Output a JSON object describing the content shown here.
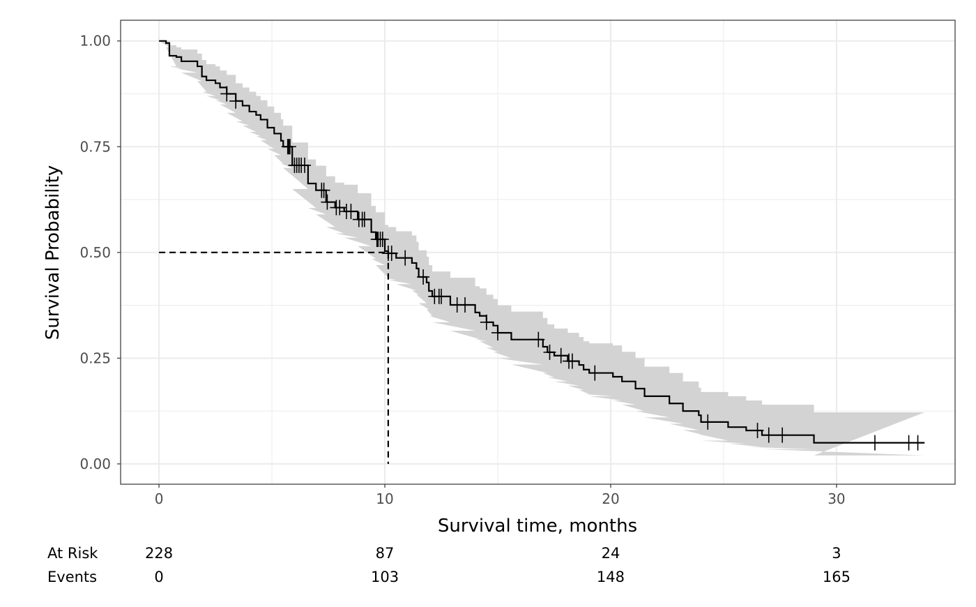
{
  "chart_data": {
    "type": "line",
    "subtype": "kaplan-meier step",
    "xlabel": "Survival time, months",
    "ylabel": "Survival Probability",
    "xlim": [
      -1.7,
      35.25
    ],
    "ylim": [
      -0.048,
      1.049
    ],
    "x_ticks": [
      0,
      10,
      20,
      30
    ],
    "x_tick_labels": [
      "0",
      "10",
      "20",
      "30"
    ],
    "y_ticks": [
      0,
      0.25,
      0.5,
      0.75,
      1.0
    ],
    "y_tick_labels": [
      "0.00",
      "0.25",
      "0.50",
      "0.75",
      "1.00"
    ],
    "grid": true,
    "colors": {
      "curve": "#000000",
      "band": "#d3d3d3",
      "grid": "#ebebeb",
      "border": "#333333"
    },
    "end_time": 33.9,
    "steps_columns": [
      "time",
      "survival",
      "lower",
      "upper"
    ],
    "steps": [
      [
        0,
        1,
        1,
        1
      ],
      [
        0.31,
        0.995,
        0.985,
        1
      ],
      [
        0.46,
        0.965,
        0.94,
        0.99
      ],
      [
        0.77,
        0.962,
        0.935,
        0.985
      ],
      [
        0.99,
        0.952,
        0.925,
        0.98
      ],
      [
        1.7,
        0.94,
        0.905,
        0.97
      ],
      [
        1.9,
        0.916,
        0.88,
        0.955
      ],
      [
        2.1,
        0.907,
        0.87,
        0.945
      ],
      [
        2.5,
        0.9,
        0.86,
        0.94
      ],
      [
        2.7,
        0.89,
        0.85,
        0.93
      ],
      [
        3.0,
        0.875,
        0.83,
        0.92
      ],
      [
        3.4,
        0.858,
        0.81,
        0.9
      ],
      [
        3.7,
        0.847,
        0.8,
        0.89
      ],
      [
        4.0,
        0.833,
        0.785,
        0.88
      ],
      [
        4.3,
        0.825,
        0.775,
        0.87
      ],
      [
        4.5,
        0.814,
        0.765,
        0.86
      ],
      [
        4.8,
        0.795,
        0.745,
        0.845
      ],
      [
        5.1,
        0.781,
        0.73,
        0.83
      ],
      [
        5.4,
        0.764,
        0.71,
        0.815
      ],
      [
        5.5,
        0.75,
        0.7,
        0.8
      ],
      [
        5.9,
        0.706,
        0.65,
        0.76
      ],
      [
        6.6,
        0.663,
        0.605,
        0.72
      ],
      [
        6.95,
        0.647,
        0.59,
        0.705
      ],
      [
        7.4,
        0.619,
        0.56,
        0.68
      ],
      [
        7.8,
        0.606,
        0.545,
        0.665
      ],
      [
        8.2,
        0.597,
        0.535,
        0.66
      ],
      [
        8.8,
        0.578,
        0.515,
        0.64
      ],
      [
        9.4,
        0.548,
        0.485,
        0.61
      ],
      [
        9.6,
        0.531,
        0.47,
        0.595
      ],
      [
        10.0,
        0.503,
        0.44,
        0.565
      ],
      [
        10.15,
        0.498,
        0.435,
        0.56
      ],
      [
        10.5,
        0.487,
        0.425,
        0.55
      ],
      [
        11.2,
        0.475,
        0.41,
        0.54
      ],
      [
        11.4,
        0.462,
        0.4,
        0.525
      ],
      [
        11.5,
        0.442,
        0.38,
        0.505
      ],
      [
        11.85,
        0.429,
        0.365,
        0.49
      ],
      [
        11.95,
        0.409,
        0.35,
        0.47
      ],
      [
        12.1,
        0.396,
        0.335,
        0.455
      ],
      [
        12.9,
        0.376,
        0.315,
        0.44
      ],
      [
        14.0,
        0.358,
        0.295,
        0.42
      ],
      [
        14.2,
        0.35,
        0.29,
        0.415
      ],
      [
        14.5,
        0.335,
        0.275,
        0.4
      ],
      [
        14.8,
        0.327,
        0.265,
        0.39
      ],
      [
        15.0,
        0.31,
        0.25,
        0.375
      ],
      [
        15.6,
        0.294,
        0.235,
        0.36
      ],
      [
        17.0,
        0.277,
        0.215,
        0.345
      ],
      [
        17.2,
        0.264,
        0.205,
        0.33
      ],
      [
        17.5,
        0.256,
        0.195,
        0.32
      ],
      [
        18.1,
        0.243,
        0.185,
        0.31
      ],
      [
        18.6,
        0.234,
        0.175,
        0.3
      ],
      [
        18.8,
        0.223,
        0.165,
        0.29
      ],
      [
        19.05,
        0.215,
        0.16,
        0.285
      ],
      [
        20.1,
        0.206,
        0.15,
        0.28
      ],
      [
        20.5,
        0.195,
        0.14,
        0.265
      ],
      [
        21.1,
        0.178,
        0.125,
        0.25
      ],
      [
        21.5,
        0.16,
        0.11,
        0.23
      ],
      [
        22.6,
        0.143,
        0.095,
        0.215
      ],
      [
        23.2,
        0.125,
        0.08,
        0.195
      ],
      [
        23.9,
        0.115,
        0.07,
        0.18
      ],
      [
        24.0,
        0.099,
        0.055,
        0.17
      ],
      [
        25.2,
        0.087,
        0.048,
        0.16
      ],
      [
        26.0,
        0.079,
        0.04,
        0.15
      ],
      [
        26.7,
        0.068,
        0.035,
        0.14
      ],
      [
        29.0,
        0.05,
        0.02,
        0.122
      ]
    ],
    "censored_times": [
      3.0,
      3.4,
      5.7,
      5.75,
      5.8,
      6.0,
      6.1,
      6.2,
      6.3,
      6.45,
      7.2,
      7.3,
      7.45,
      7.85,
      8.0,
      8.3,
      8.5,
      8.85,
      9.0,
      9.1,
      9.65,
      9.7,
      9.8,
      9.9,
      10.15,
      10.3,
      10.9,
      11.7,
      12.2,
      12.4,
      12.5,
      13.2,
      13.55,
      14.5,
      15.0,
      16.8,
      17.3,
      17.8,
      18.15,
      18.3,
      19.3,
      24.3,
      26.5,
      27.0,
      27.6,
      31.7,
      33.2,
      33.6
    ],
    "median": {
      "time": 10.15,
      "survival": 0.5
    },
    "risk_table": {
      "times": [
        0,
        10,
        20,
        30
      ],
      "rows": [
        {
          "label": "At Risk",
          "values": [
            "228",
            "87",
            "24",
            "3"
          ]
        },
        {
          "label": "Events",
          "values": [
            "0",
            "103",
            "148",
            "165"
          ]
        }
      ]
    }
  }
}
